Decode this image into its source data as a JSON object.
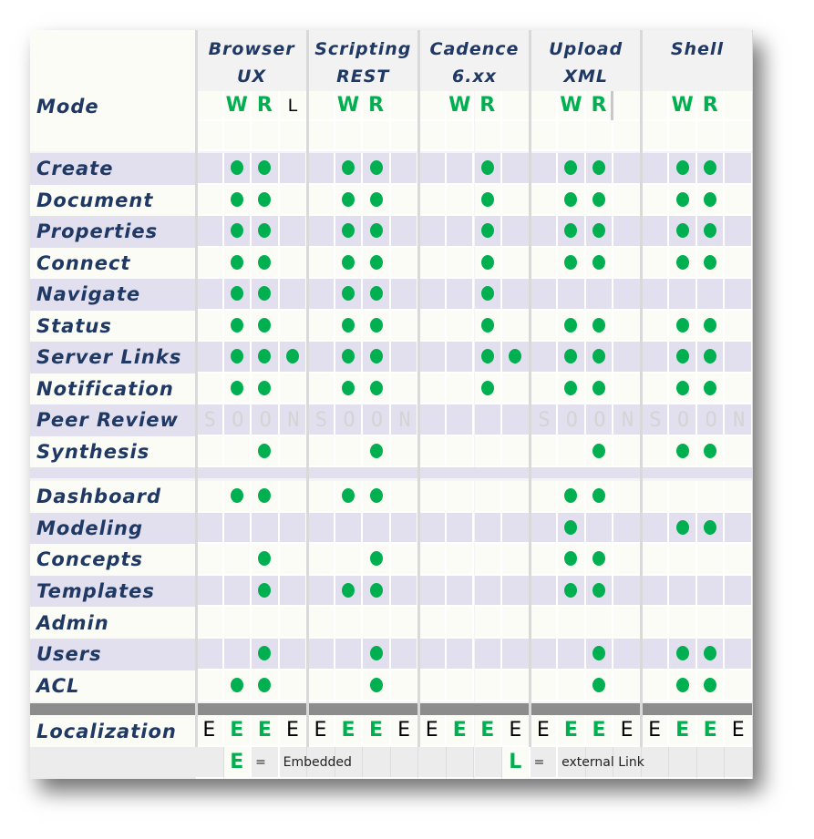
{
  "colors": {
    "accent": "#00b050",
    "label": "#1f3864",
    "lavender": "#e2dfee",
    "light": "#fbfcf6"
  },
  "groups": [
    {
      "line1": "Browser",
      "line2": "UX",
      "modes": [
        "",
        "W",
        "R",
        "L"
      ]
    },
    {
      "line1": "Scripting",
      "line2": "REST",
      "modes": [
        "",
        "W",
        "R",
        ""
      ]
    },
    {
      "line1": "Cadence",
      "line2": "6.xx",
      "modes": [
        "",
        "W",
        "R",
        ""
      ]
    },
    {
      "line1": "Upload",
      "line2": "XML",
      "modes": [
        "",
        "W",
        "R",
        ""
      ]
    },
    {
      "line1": "Shell",
      "line2": "",
      "modes": [
        "",
        "W",
        "R",
        ""
      ]
    }
  ],
  "mode_label": "Mode",
  "rows_a": [
    {
      "label": "Create",
      "cells": [
        "0110",
        "0110",
        "0010",
        "0110",
        "0110"
      ]
    },
    {
      "label": "Document",
      "cells": [
        "0110",
        "0110",
        "0010",
        "0110",
        "0110"
      ]
    },
    {
      "label": "Properties",
      "cells": [
        "0110",
        "0110",
        "0010",
        "0110",
        "0110"
      ]
    },
    {
      "label": "Connect",
      "cells": [
        "0110",
        "0110",
        "0010",
        "0110",
        "0110"
      ]
    },
    {
      "label": "Navigate",
      "cells": [
        "0110",
        "0110",
        "0010",
        "0000",
        "0000"
      ]
    },
    {
      "label": "Status",
      "cells": [
        "0110",
        "0110",
        "0010",
        "0110",
        "0110"
      ]
    },
    {
      "label": "Server Links",
      "cells": [
        "0111",
        "0110",
        "0011",
        "0110",
        "0110"
      ]
    },
    {
      "label": "Notification",
      "cells": [
        "0110",
        "0110",
        "0010",
        "0110",
        "0110"
      ]
    },
    {
      "label": "Peer Review",
      "soon": [
        "SOON",
        "SOON",
        "",
        "SOON",
        "SOON"
      ]
    },
    {
      "label": "Synthesis",
      "cells": [
        "0010",
        "0010",
        "0000",
        "0010",
        "0110"
      ]
    }
  ],
  "rows_b": [
    {
      "label": "Dashboard",
      "cells": [
        "0110",
        "0110",
        "0000",
        "0110",
        "0000"
      ]
    },
    {
      "label": "Modeling",
      "cells": [
        "0000",
        "0000",
        "0000",
        "0100",
        "0110"
      ]
    },
    {
      "label": "Concepts",
      "cells": [
        "0010",
        "0010",
        "0000",
        "0110",
        "0000"
      ]
    },
    {
      "label": "Templates",
      "cells": [
        "0010",
        "0110",
        "0000",
        "0110",
        "0000"
      ]
    },
    {
      "label": "Admin",
      "cells": [
        "0000",
        "0000",
        "0000",
        "0000",
        "0000"
      ]
    },
    {
      "label": "Users",
      "cells": [
        "0010",
        "0010",
        "0000",
        "0010",
        "0110"
      ]
    },
    {
      "label": "ACL",
      "cells": [
        "0110",
        "0010",
        "0000",
        "0010",
        "0110"
      ]
    }
  ],
  "localization": {
    "label": "Localization",
    "values": [
      "E",
      "E",
      "E",
      "E"
    ],
    "green": [
      false,
      true,
      true,
      false
    ]
  },
  "legend": [
    {
      "key": "E",
      "eq": "=",
      "text": "Embedded"
    },
    {
      "key": "L",
      "eq": "=",
      "text": "external Link"
    }
  ]
}
